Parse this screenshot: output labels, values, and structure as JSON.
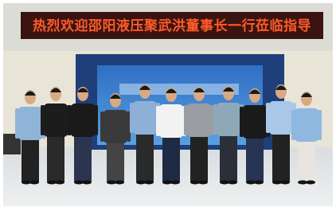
{
  "banner": {
    "text": "热烈欢迎邵阳液压聚武洪董事长一行莅临指导"
  }
}
